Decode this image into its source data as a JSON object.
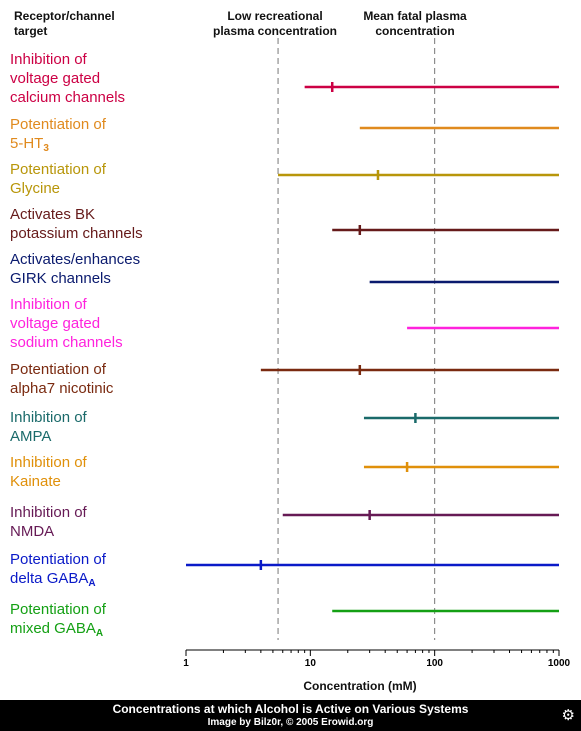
{
  "headers": {
    "target": [
      "Receptor/channel",
      "target"
    ],
    "low": [
      "Low recreational",
      "plasma concentration"
    ],
    "fatal": [
      "Mean fatal plasma",
      "concentration"
    ]
  },
  "chart_data": {
    "type": "range",
    "title": "Concentrations at which Alcohol is Active on Various Systems",
    "xlabel": "Concentration (mM)",
    "x_scale": "log",
    "xlim": [
      1,
      1000
    ],
    "x_ticks": [
      "1",
      "10",
      "100",
      "1000"
    ],
    "reference_lines": [
      {
        "label": "Low recreational plasma concentration",
        "x": 5.5
      },
      {
        "label": "Mean fatal plasma concentration",
        "x": 100
      }
    ],
    "series": [
      {
        "lines": [
          "Inhibition of",
          "voltage gated",
          "calcium channels"
        ],
        "color": "#cc0044",
        "min": 9,
        "max": 1000,
        "marker": 15
      },
      {
        "lines": [
          "Potentiation of",
          "5-HT|3"
        ],
        "color": "#e08a1e",
        "min": 25,
        "max": 1000,
        "marker": null
      },
      {
        "lines": [
          "Potentiation of",
          "Glycine"
        ],
        "color": "#b8960a",
        "min": 5.5,
        "max": 1000,
        "marker": 35
      },
      {
        "lines": [
          "Activates BK",
          "potassium channels"
        ],
        "color": "#661a1a",
        "min": 15,
        "max": 1000,
        "marker": 25
      },
      {
        "lines": [
          "Activates/enhances",
          "GIRK channels"
        ],
        "color": "#0a1a6e",
        "min": 30,
        "max": 1000,
        "marker": null
      },
      {
        "lines": [
          "Inhibition of",
          "voltage gated",
          "sodium channels"
        ],
        "color": "#ff22dd",
        "min": 60,
        "max": 1000,
        "marker": null
      },
      {
        "lines": [
          "Potentiation of",
          "alpha7 nicotinic"
        ],
        "color": "#7a2a10",
        "min": 4,
        "max": 1000,
        "marker": 25
      },
      {
        "lines": [
          "Inhibition of",
          "AMPA"
        ],
        "color": "#1a6a6a",
        "min": 27,
        "max": 1000,
        "marker": 70
      },
      {
        "lines": [
          "Inhibition of",
          "Kainate"
        ],
        "color": "#e0900a",
        "min": 27,
        "max": 1000,
        "marker": 60
      },
      {
        "lines": [
          "Inhibition of",
          "NMDA"
        ],
        "color": "#661a55",
        "min": 6,
        "max": 1000,
        "marker": 30
      },
      {
        "lines": [
          "Potentiation of",
          "delta GABA|A"
        ],
        "color": "#0a1ac8",
        "min": 1,
        "max": 1000,
        "marker": 4
      },
      {
        "lines": [
          "Potentiation of",
          "mixed GABA|A"
        ],
        "color": "#14a014",
        "min": 15,
        "max": 1000,
        "marker": null
      }
    ]
  },
  "footer": {
    "title": "Concentrations at which Alcohol is Active on Various Systems",
    "credit": "Image by Bilz0r, © 2005 Erowid.org"
  },
  "icons": {
    "logo": "gear-icon"
  }
}
